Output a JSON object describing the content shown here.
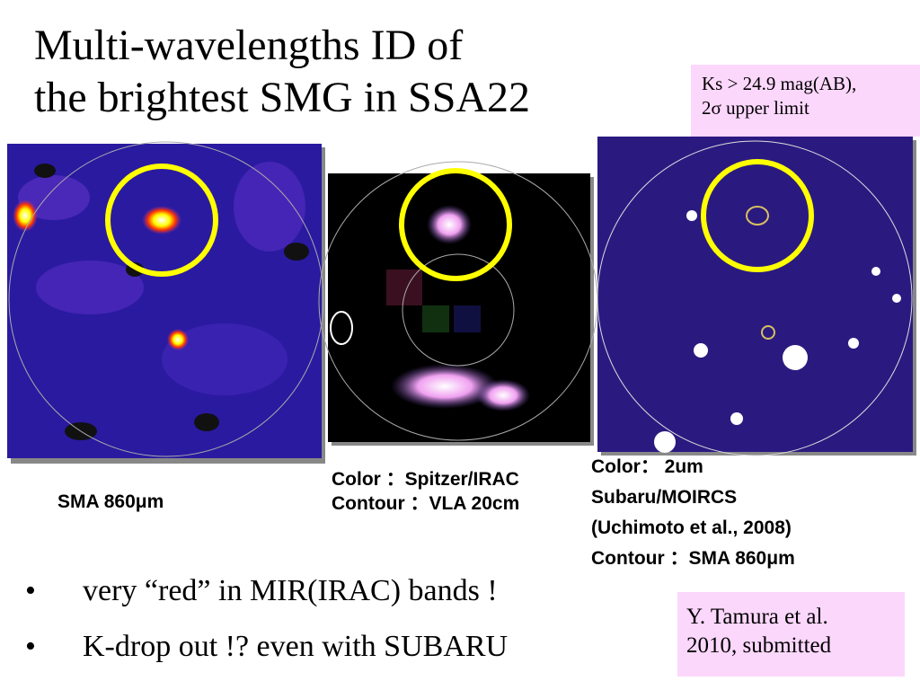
{
  "header": {
    "title_lines": [
      "Multi-wavelengths ID of",
      "the brightest SMG in SSA22"
    ]
  },
  "note": {
    "lines": [
      "Ks > 24.9 mag(AB),",
      "2σ upper limit"
    ]
  },
  "panels": [
    {
      "caption_lines": [
        "SMA 860μm"
      ]
    },
    {
      "caption_lines": [
        "Color ：Spitzer/IRAC",
        "Contour ：VLA 20cm"
      ]
    },
    {
      "caption_lines": [
        "Color： 2um",
        "Subaru/MOIRCS",
        "(Uchimoto et al., 2008)",
        "Contour ：SMA 860μm"
      ]
    }
  ],
  "bullets": [
    "very “red” in MIR(IRAC) bands !",
    "K-drop out !? even with SUBARU"
  ],
  "reference": {
    "lines": [
      "Y. Tamura et al.",
      "2010, submitted"
    ]
  }
}
